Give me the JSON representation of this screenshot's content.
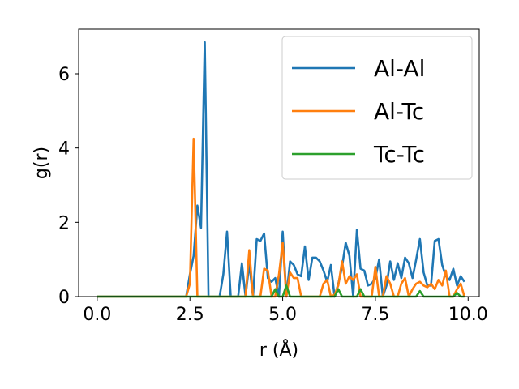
{
  "chart_data": {
    "type": "line",
    "title": "",
    "xlabel": "r (Å)",
    "ylabel": "g(r)",
    "xlim": [
      -0.5,
      10.3
    ],
    "ylim": [
      0,
      7.2
    ],
    "xticks": [
      0.0,
      2.5,
      5.0,
      7.5,
      10.0
    ],
    "xtick_labels": [
      "0.0",
      "2.5",
      "5.0",
      "7.5",
      "10.0"
    ],
    "yticks": [
      0,
      2,
      4,
      6
    ],
    "ytick_labels": [
      "0",
      "2",
      "4",
      "6"
    ],
    "grid": false,
    "legend_position": "top-right",
    "x": [
      0.0,
      0.1,
      0.2,
      0.3,
      0.4,
      0.5,
      0.6,
      0.7,
      0.8,
      0.9,
      1.0,
      1.1,
      1.2,
      1.3,
      1.4,
      1.5,
      1.6,
      1.7,
      1.8,
      1.9,
      2.0,
      2.1,
      2.2,
      2.3,
      2.4,
      2.5,
      2.6,
      2.7,
      2.8,
      2.9,
      3.0,
      3.1,
      3.2,
      3.3,
      3.4,
      3.5,
      3.6,
      3.7,
      3.8,
      3.9,
      4.0,
      4.1,
      4.2,
      4.3,
      4.4,
      4.5,
      4.6,
      4.7,
      4.8,
      4.9,
      5.0,
      5.1,
      5.2,
      5.3,
      5.4,
      5.5,
      5.6,
      5.7,
      5.8,
      5.9,
      6.0,
      6.1,
      6.2,
      6.3,
      6.4,
      6.5,
      6.6,
      6.7,
      6.8,
      6.9,
      7.0,
      7.1,
      7.2,
      7.3,
      7.4,
      7.5,
      7.6,
      7.7,
      7.8,
      7.9,
      8.0,
      8.1,
      8.2,
      8.3,
      8.4,
      8.5,
      8.6,
      8.7,
      8.8,
      8.9,
      9.0,
      9.1,
      9.2,
      9.3,
      9.4,
      9.5,
      9.6,
      9.7,
      9.8,
      9.9
    ],
    "series": [
      {
        "name": "Al-Al",
        "color": "#1f77b4",
        "values": [
          0,
          0,
          0,
          0,
          0,
          0,
          0,
          0,
          0,
          0,
          0,
          0,
          0,
          0,
          0,
          0,
          0,
          0,
          0,
          0,
          0,
          0,
          0,
          0,
          0,
          0.6,
          1.1,
          2.45,
          1.85,
          6.85,
          0,
          0,
          0,
          0,
          0.6,
          1.75,
          0,
          0,
          0,
          0.9,
          0,
          0.9,
          0,
          1.55,
          1.5,
          1.7,
          0.5,
          0.4,
          0.5,
          0,
          1.75,
          0,
          0.95,
          0.85,
          0.6,
          0.55,
          1.35,
          0.45,
          1.05,
          1.05,
          0.95,
          0.7,
          0.4,
          0.85,
          0,
          0.35,
          0.8,
          1.45,
          1.1,
          0,
          1.8,
          0.75,
          0.7,
          0.3,
          0.35,
          0.5,
          1.0,
          0,
          0.3,
          0.95,
          0.45,
          0.9,
          0.5,
          1.05,
          0.9,
          0.5,
          1.0,
          1.55,
          0.65,
          0.3,
          0.3,
          1.5,
          1.55,
          0.85,
          0.55,
          0.45,
          0.75,
          0.3,
          0.55,
          0.4
        ]
      },
      {
        "name": "Al-Tc",
        "color": "#ff7f0e",
        "values": [
          0,
          0,
          0,
          0,
          0,
          0,
          0,
          0,
          0,
          0,
          0,
          0,
          0,
          0,
          0,
          0,
          0,
          0,
          0,
          0,
          0,
          0,
          0,
          0,
          0,
          0.35,
          4.25,
          0,
          0,
          0,
          0,
          0,
          0,
          0,
          0,
          0,
          0,
          0,
          0,
          0,
          0,
          1.25,
          0,
          0,
          0,
          0.75,
          0.7,
          0,
          0,
          0.6,
          1.45,
          0,
          0.65,
          0.5,
          0.5,
          0,
          0,
          0,
          0,
          0,
          0,
          0.35,
          0.45,
          0,
          0.05,
          0.3,
          0.95,
          0.35,
          0.55,
          0.45,
          0.6,
          0,
          0,
          0,
          0,
          0.8,
          0,
          0,
          0.55,
          0.35,
          0,
          0,
          0.35,
          0.5,
          0,
          0.2,
          0.35,
          0.4,
          0.3,
          0.25,
          0.35,
          0.2,
          0.45,
          0.3,
          0.7,
          0,
          0,
          0.2,
          0.35,
          0
        ]
      },
      {
        "name": "Tc-Tc",
        "color": "#2ca02c",
        "values": [
          0,
          0,
          0,
          0,
          0,
          0,
          0,
          0,
          0,
          0,
          0,
          0,
          0,
          0,
          0,
          0,
          0,
          0,
          0,
          0,
          0,
          0,
          0,
          0,
          0,
          0,
          0,
          0,
          0,
          0,
          0,
          0,
          0,
          0,
          0,
          0,
          0,
          0,
          0,
          0,
          0,
          0,
          0,
          0,
          0,
          0,
          0,
          0,
          0.2,
          0,
          0,
          0.3,
          0,
          0,
          0,
          0,
          0,
          0,
          0,
          0,
          0,
          0,
          0,
          0,
          0,
          0.2,
          0,
          0,
          0,
          0,
          0,
          0.2,
          0,
          0,
          0,
          0,
          0,
          0,
          0,
          0,
          0,
          0,
          0,
          0,
          0,
          0,
          0,
          0.15,
          0,
          0,
          0,
          0,
          0,
          0,
          0,
          0,
          0,
          0.1,
          0,
          0
        ]
      }
    ]
  }
}
